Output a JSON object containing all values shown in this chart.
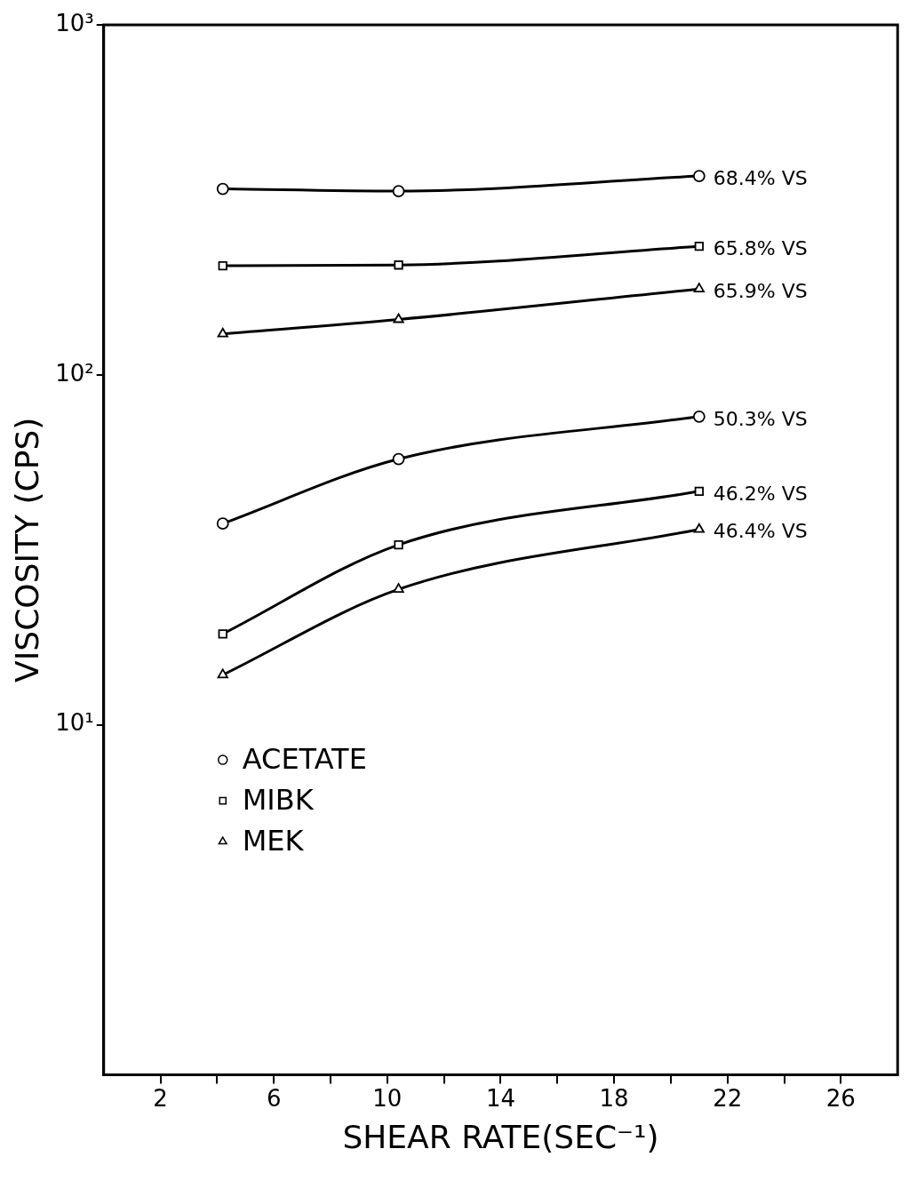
{
  "chart_data": {
    "type": "line",
    "xlabel": "SHEAR RATE(SEC⁻¹)",
    "ylabel": "VISCOSITY (CPS)",
    "log": "y",
    "grid": false,
    "legend": "bottom left",
    "xlim": [
      0,
      28
    ],
    "xticks": [
      2,
      {
        "value": 4,
        "label": null
      },
      6,
      {
        "value": 8,
        "label": null
      },
      10,
      {
        "value": 12,
        "label": null
      },
      14,
      {
        "value": 16,
        "label": null
      },
      18,
      {
        "value": 20,
        "label": null
      },
      22,
      {
        "value": 24,
        "label": null
      },
      26
    ],
    "ylim": [
      1,
      1000
    ],
    "yticks": [
      {
        "value": 10,
        "label": "10¹"
      },
      {
        "value": 100,
        "label": "10²"
      },
      {
        "value": 1000,
        "label": "10³"
      }
    ],
    "series": [
      {
        "name": "ACETATE",
        "color": "#000000",
        "marker": "circle",
        "values": [
          340,
          335,
          370
        ]
      },
      {
        "name": "MIBK",
        "color": "#000000",
        "marker": "square",
        "values": [
          205,
          206,
          233
        ]
      },
      {
        "name": "MEK",
        "color": "#000000",
        "marker": "triangle",
        "values": [
          131,
          144,
          176
        ]
      },
      {
        "color": "#000000",
        "marker": "circle",
        "values": [
          37.6,
          57.5,
          76
        ]
      },
      {
        "color": "#000000",
        "marker": "square",
        "values": [
          18.2,
          32.7,
          46.5
        ]
      },
      {
        "color": "#000000",
        "marker": "triangle",
        "values": [
          13.9,
          24.4,
          36.2
        ]
      }
    ],
    "x": [
      4.2,
      10.4,
      21
    ],
    "annotations": [
      "68.4% VS",
      "65.8% VS",
      "65.9% VS",
      "50.3% VS",
      "46.2% VS",
      "46.4% VS"
    ]
  }
}
